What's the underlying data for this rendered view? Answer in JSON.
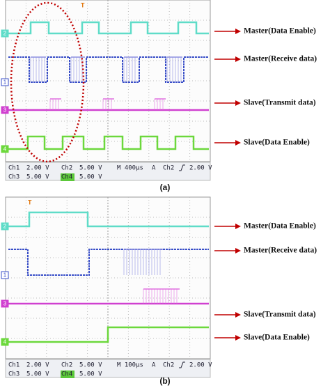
{
  "panel_a": {
    "caption": "(a)",
    "trigger": "T",
    "markers": [
      "2",
      "1",
      "3",
      "4"
    ],
    "labels": [
      "Master(Data Enable)",
      "Master(Receive data)",
      "Slave(Transmit  data)",
      "Slave(Data Enable)"
    ],
    "readout": {
      "row1": [
        "Ch1",
        "2.00 V",
        "Ch2",
        "5.00 V",
        "M 400µs",
        "A",
        "Ch2",
        "2.00 V"
      ],
      "row2": [
        "Ch3",
        "5.00 V",
        "Ch4",
        "5.00 V"
      ]
    }
  },
  "panel_b": {
    "caption": "(b)",
    "trigger": "T",
    "markers": [
      "2",
      "1",
      "3",
      "4"
    ],
    "labels": [
      "Master(Data Enable)",
      "Master(Receive data)",
      "Slave(Transmit  data)",
      "Slave(Data Enable)"
    ],
    "readout": {
      "row1": [
        "Ch1",
        "2.00 V",
        "Ch2",
        "5.00 V",
        "M 100µs",
        "A",
        "Ch2",
        "2.00 V"
      ],
      "row2": [
        "Ch3",
        "5.00 V",
        "Ch4",
        "5.00 V"
      ]
    }
  }
}
